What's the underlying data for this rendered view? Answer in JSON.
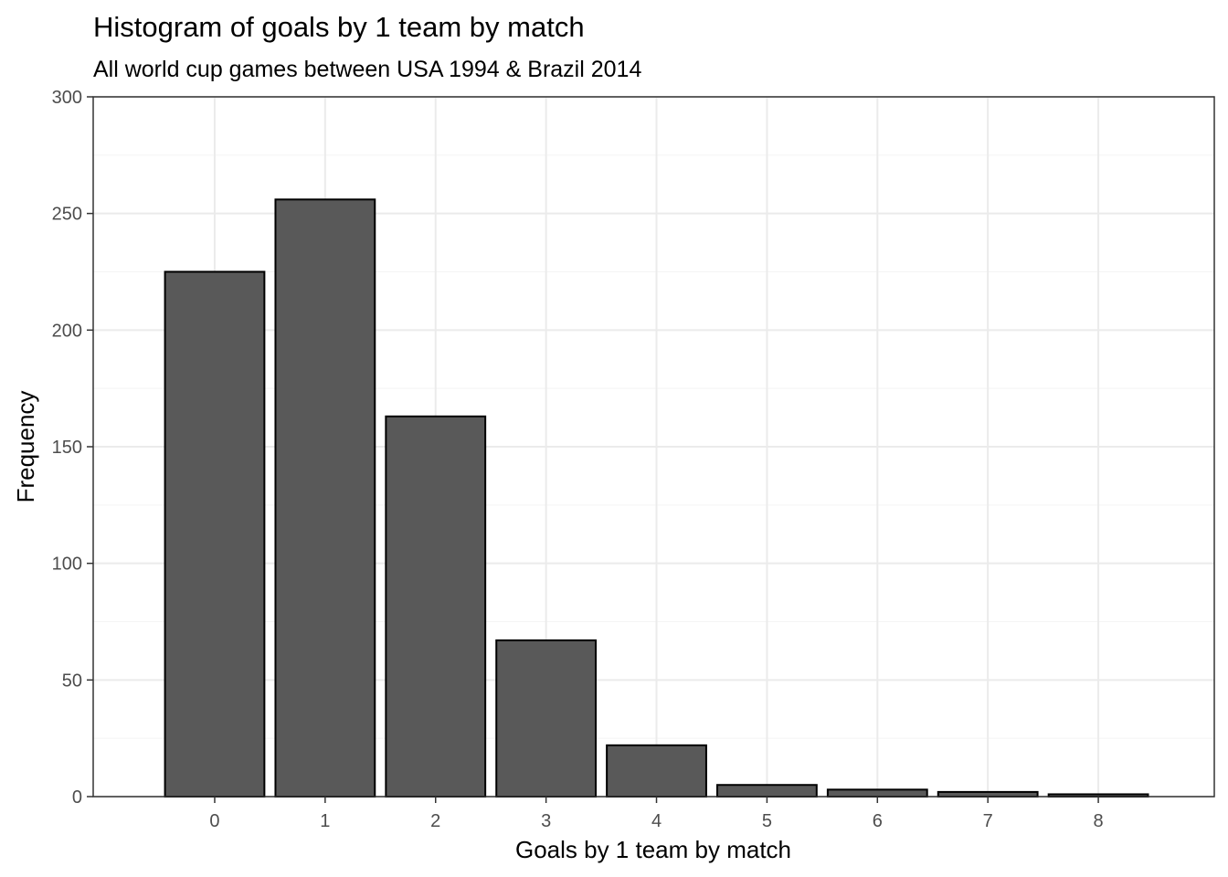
{
  "chart_data": {
    "type": "bar",
    "title": "Histogram of goals by 1 team by match",
    "subtitle": "All world cup games between USA 1994 & Brazil 2014",
    "xlabel": "Goals by 1 team by match",
    "ylabel": "Frequency",
    "categories": [
      "0",
      "1",
      "2",
      "3",
      "4",
      "5",
      "6",
      "7",
      "8"
    ],
    "values": [
      225,
      256,
      163,
      67,
      22,
      5,
      3,
      2,
      1
    ],
    "ylim": [
      0,
      300
    ],
    "yticks": [
      0,
      50,
      100,
      150,
      200,
      250,
      300
    ],
    "grid": true,
    "legend": "none",
    "bar_fill": "#595959",
    "bar_outline": "#000000"
  }
}
